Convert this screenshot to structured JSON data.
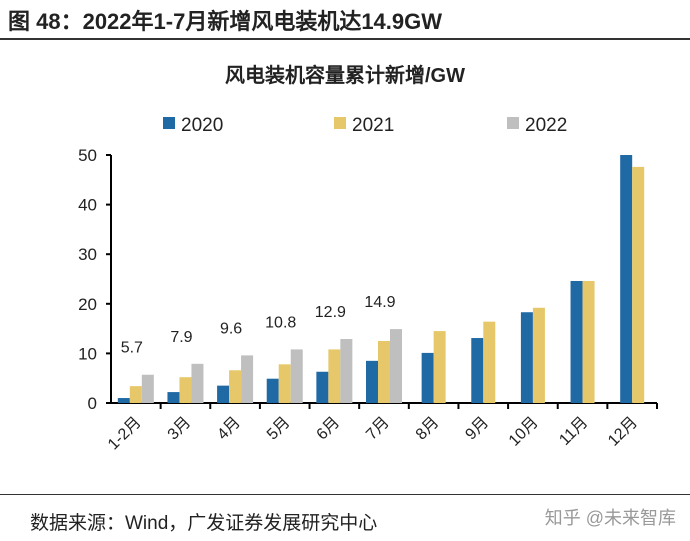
{
  "figure_title": "图 48：2022年1-7月新增风电装机达14.9GW",
  "source": "数据来源：Wind，广发证券发展研究中心",
  "watermark": "知乎 @未来智库",
  "chart_data": {
    "type": "bar",
    "title": "风电装机容量累计新增/GW",
    "categories": [
      "1-2月",
      "3月",
      "4月",
      "5月",
      "6月",
      "7月",
      "8月",
      "9月",
      "10月",
      "11月",
      "12月"
    ],
    "series": [
      {
        "name": "2020",
        "color": "#1f6aa5",
        "values": [
          1.0,
          2.2,
          3.5,
          4.9,
          6.3,
          8.5,
          10.1,
          13.1,
          18.3,
          24.6,
          50
        ]
      },
      {
        "name": "2021",
        "color": "#e6c86a",
        "values": [
          3.4,
          5.2,
          6.6,
          7.8,
          10.8,
          12.5,
          14.5,
          16.4,
          19.2,
          24.6,
          47.6
        ]
      },
      {
        "name": "2022",
        "color": "#bfbfbf",
        "values": [
          5.7,
          7.9,
          9.6,
          10.8,
          12.9,
          14.9,
          null,
          null,
          null,
          null,
          null
        ]
      }
    ],
    "data_labels": {
      "series": "2022",
      "labels": [
        "5.7",
        "7.9",
        "9.6",
        "10.8",
        "12.9",
        "14.9"
      ]
    },
    "yticks": [
      0,
      10,
      20,
      30,
      40,
      50
    ],
    "ylim": [
      0,
      50
    ],
    "grid": false,
    "legend": "top"
  }
}
